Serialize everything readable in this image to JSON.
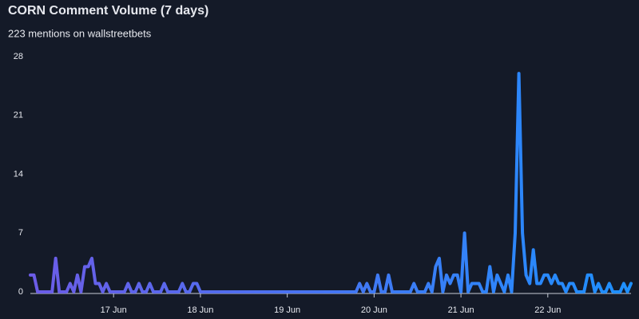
{
  "chart_data": {
    "type": "line",
    "title": "CORN Comment Volume (7 days)",
    "subtitle": "223 mentions on wallstreetbets",
    "categories": [
      null,
      null,
      null,
      null,
      null,
      null,
      null,
      null,
      null,
      null,
      null,
      null,
      null,
      null,
      null,
      null,
      null,
      null,
      null,
      null,
      null,
      null,
      null,
      "17 Jun",
      null,
      null,
      null,
      null,
      null,
      null,
      null,
      null,
      null,
      null,
      null,
      null,
      null,
      null,
      null,
      null,
      null,
      null,
      null,
      null,
      null,
      null,
      null,
      "18 Jun",
      null,
      null,
      null,
      null,
      null,
      null,
      null,
      null,
      null,
      null,
      null,
      null,
      null,
      null,
      null,
      null,
      null,
      null,
      null,
      null,
      null,
      null,
      null,
      "19 Jun",
      null,
      null,
      null,
      null,
      null,
      null,
      null,
      null,
      null,
      null,
      null,
      null,
      null,
      null,
      null,
      null,
      null,
      null,
      null,
      null,
      null,
      null,
      null,
      "20 Jun",
      null,
      null,
      null,
      null,
      null,
      null,
      null,
      null,
      null,
      null,
      null,
      null,
      null,
      null,
      null,
      null,
      null,
      null,
      null,
      null,
      null,
      null,
      null,
      "21 Jun",
      null,
      null,
      null,
      null,
      null,
      null,
      null,
      null,
      null,
      null,
      null,
      null,
      null,
      null,
      null,
      null,
      null,
      null,
      null,
      null,
      null,
      null,
      null,
      "22 Jun",
      null,
      null,
      null,
      null,
      null,
      null,
      null,
      null,
      null,
      null,
      null,
      null,
      null,
      null,
      null,
      null,
      null,
      null,
      null,
      null,
      null,
      null,
      null
    ],
    "series": [
      {
        "gradient": [
          "#6c5ce7",
          "#1e90ff"
        ],
        "values": [
          2,
          2,
          0,
          0,
          0,
          0,
          0,
          4,
          0,
          0,
          0,
          1,
          0,
          2,
          0,
          3,
          3,
          4,
          1,
          1,
          0,
          1,
          0,
          0,
          0,
          0,
          0,
          1,
          0,
          0,
          1,
          0,
          0,
          1,
          0,
          0,
          0,
          1,
          0,
          0,
          0,
          0,
          1,
          0,
          0,
          1,
          1,
          0,
          0,
          0,
          0,
          0,
          0,
          0,
          0,
          0,
          0,
          0,
          0,
          0,
          0,
          0,
          0,
          0,
          0,
          0,
          0,
          0,
          0,
          0,
          0,
          0,
          0,
          0,
          0,
          0,
          0,
          0,
          0,
          0,
          0,
          0,
          0,
          0,
          0,
          0,
          0,
          0,
          0,
          0,
          0,
          1,
          0,
          1,
          0,
          0,
          2,
          0,
          0,
          2,
          0,
          0,
          0,
          0,
          0,
          0,
          1,
          0,
          0,
          0,
          1,
          0,
          3,
          4,
          0,
          2,
          1,
          2,
          2,
          0,
          7,
          0,
          1,
          1,
          1,
          0,
          0,
          3,
          0,
          2,
          1,
          0,
          2,
          0,
          7,
          26,
          7,
          2,
          1,
          5,
          1,
          1,
          2,
          2,
          1,
          2,
          1,
          1,
          0,
          1,
          1,
          0,
          0,
          0,
          2,
          2,
          0,
          1,
          0,
          0,
          1,
          0,
          0,
          0,
          1,
          0,
          1
        ]
      }
    ],
    "ylim": [
      0,
      28
    ],
    "yticks": [
      0,
      7,
      14,
      21,
      28
    ],
    "grid": false
  }
}
